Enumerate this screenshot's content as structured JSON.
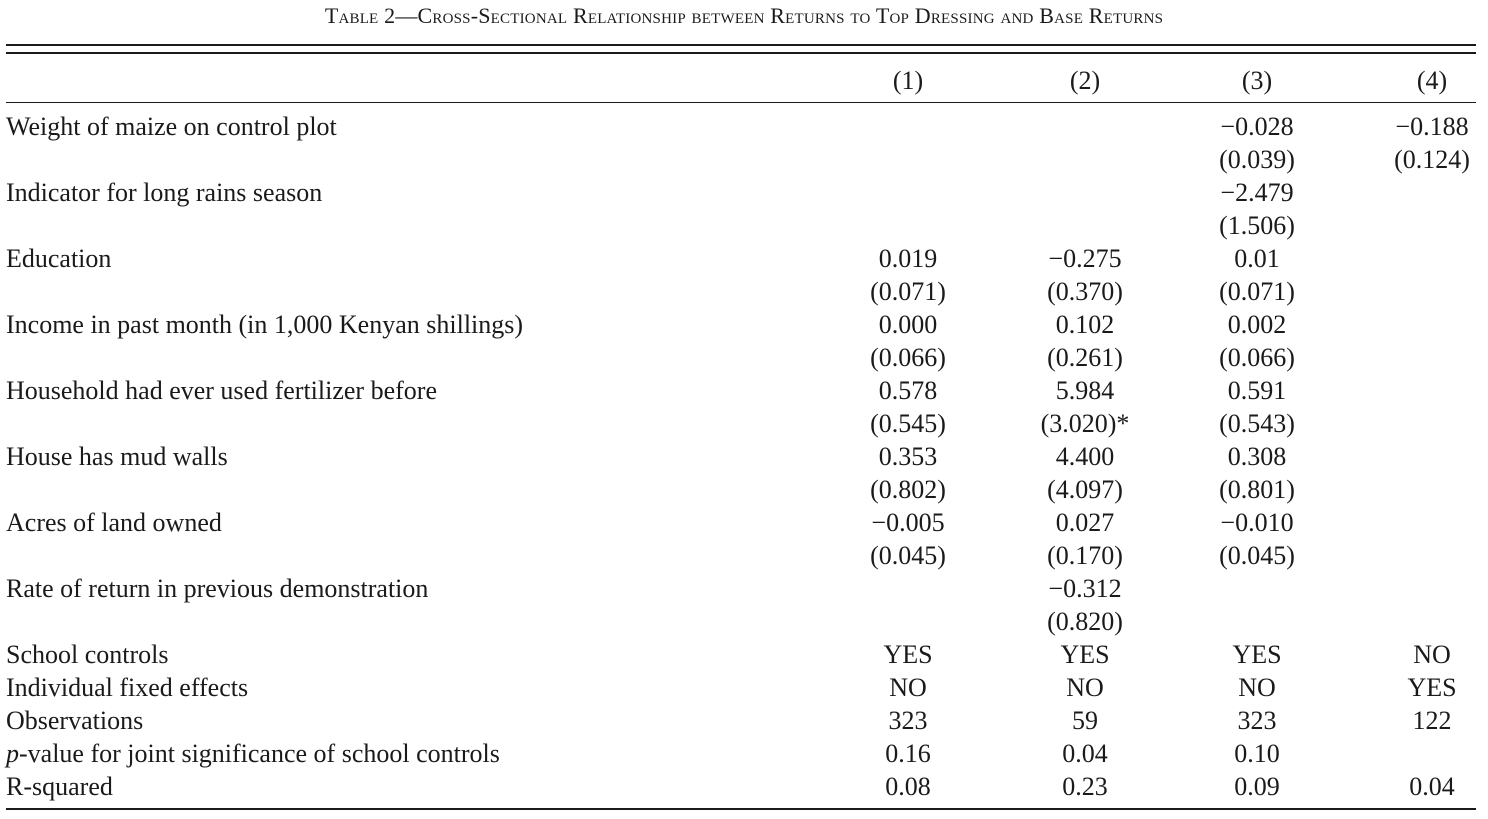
{
  "title": "Table 2—Cross-Sectional Relationship between Returns to Top Dressing and Base Returns",
  "columns": [
    "(1)",
    "(2)",
    "(3)",
    "(4)"
  ],
  "rows": [
    {
      "label": "Weight of maize on control plot",
      "coef": [
        "",
        "",
        "−0.028",
        "−0.188"
      ],
      "se": [
        "",
        "",
        "(0.039)",
        "(0.124)"
      ]
    },
    {
      "label": "Indicator for long rains season",
      "coef": [
        "",
        "",
        "−2.479",
        ""
      ],
      "se": [
        "",
        "",
        "(1.506)",
        ""
      ]
    },
    {
      "label": "Education",
      "coef": [
        "0.019",
        "−0.275",
        "0.01",
        ""
      ],
      "se": [
        "(0.071)",
        "(0.370)",
        "(0.071)",
        ""
      ]
    },
    {
      "label": "Income in past month (in 1,000 Kenyan shillings)",
      "coef": [
        "0.000",
        "0.102",
        "0.002",
        ""
      ],
      "se": [
        "(0.066)",
        "(0.261)",
        "(0.066)",
        ""
      ]
    },
    {
      "label": "Household had ever used fertilizer before",
      "coef": [
        "0.578",
        "5.984",
        "0.591",
        ""
      ],
      "se": [
        "(0.545)",
        "(3.020)*",
        "(0.543)",
        ""
      ]
    },
    {
      "label": "House has mud walls",
      "coef": [
        "0.353",
        "4.400",
        "0.308",
        ""
      ],
      "se": [
        "(0.802)",
        "(4.097)",
        "(0.801)",
        ""
      ]
    },
    {
      "label": "Acres of land owned",
      "coef": [
        "−0.005",
        "0.027",
        "−0.010",
        ""
      ],
      "se": [
        "(0.045)",
        "(0.170)",
        "(0.045)",
        ""
      ]
    },
    {
      "label": "Rate of return in previous demonstration",
      "coef": [
        "",
        "−0.312",
        "",
        ""
      ],
      "se": [
        "",
        "(0.820)",
        "",
        ""
      ]
    }
  ],
  "summary": [
    {
      "label": "School controls",
      "values": [
        "YES",
        "YES",
        "YES",
        "NO"
      ]
    },
    {
      "label": "Individual fixed effects",
      "values": [
        "NO",
        "NO",
        "NO",
        "YES"
      ]
    },
    {
      "label": "Observations",
      "values": [
        "323",
        "59",
        "323",
        "122"
      ]
    },
    {
      "label_italic": "p",
      "label": "-value for joint significance of school controls",
      "values": [
        "0.16",
        "0.04",
        "0.10",
        ""
      ]
    },
    {
      "label": "R-squared",
      "values": [
        "0.08",
        "0.23",
        "0.09",
        "0.04"
      ]
    }
  ]
}
